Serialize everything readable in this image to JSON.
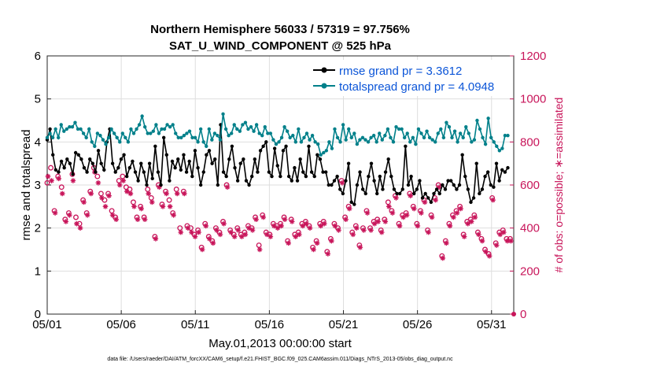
{
  "chart_data": {
    "type": "line",
    "title_line1": "Northern Hemisphere 56033 / 57319 = 97.756%",
    "title_line2": "SAT_U_WIND_COMPONENT @ 525 hPa",
    "xlabel": "May.01,2013 00:00:00 start",
    "ylabel_left": "rmse and totalspread",
    "ylabel_right": "# of obs: o=possible; ∗=assimilated",
    "ylim_left": [
      0,
      6
    ],
    "ylim_right": [
      0,
      1200
    ],
    "xlim": [
      0,
      31.5
    ],
    "x_ticks": [
      0,
      5,
      10,
      15,
      20,
      25,
      30
    ],
    "x_tick_labels": [
      "05/01",
      "05/06",
      "05/11",
      "05/16",
      "05/21",
      "05/26",
      "05/31"
    ],
    "y_ticks_left": [
      "0",
      "1",
      "2",
      "3",
      "4",
      "5",
      "6"
    ],
    "y_ticks_right": [
      "0",
      "200",
      "400",
      "600",
      "800",
      "1000",
      "1200"
    ],
    "grid": true,
    "legend_position": "top-right",
    "footnote": "data file: /Users/raeder/DAI/ATM_forcXX/CAM6_setup/f.e21.FHIST_BGC.f09_025.CAM6assim.011/Diags_NTrS_2013-05/obs_diag_output.nc",
    "colors": {
      "rmse": "#000000",
      "totalspread": "#00808a",
      "obs": "#c8155a",
      "legend_text": "#0b55d8"
    },
    "series": [
      {
        "name": "rmse grand pr = 3.3612",
        "axis": "left",
        "values": [
          4.05,
          4.3,
          3.7,
          3.35,
          3.3,
          3.55,
          3.4,
          3.6,
          3.5,
          3.25,
          3.75,
          3.7,
          3.6,
          3.4,
          3.3,
          3.6,
          3.5,
          3.3,
          3.8,
          3.5,
          3.35,
          4.0,
          4.3,
          3.5,
          3.3,
          3.4,
          3.6,
          3.7,
          3.2,
          3.4,
          3.55,
          3.3,
          3.1,
          3.5,
          3.3,
          3.0,
          3.5,
          3.15,
          3.9,
          3.3,
          3.0,
          4.1,
          3.7,
          3.1,
          3.55,
          3.4,
          3.6,
          3.35,
          3.7,
          3.3,
          3.55,
          3.2,
          3.8,
          3.4,
          3.0,
          3.3,
          3.7,
          3.8,
          3.5,
          3.6,
          3.0,
          4.4,
          3.3,
          3.2,
          3.6,
          3.9,
          3.4,
          3.1,
          3.5,
          3.6,
          3.1,
          3.0,
          3.2,
          3.6,
          3.3,
          3.8,
          3.9,
          4.0,
          3.3,
          3.2,
          3.85,
          3.45,
          3.2,
          3.8,
          3.9,
          3.2,
          3.1,
          3.4,
          3.1,
          3.6,
          3.3,
          3.2,
          3.9,
          3.3,
          3.2,
          3.7,
          3.6,
          3.3,
          3.3,
          3.0,
          3.0,
          3.1,
          3.2,
          2.9,
          2.8,
          3.1,
          3.5,
          2.6,
          2.55,
          3.0,
          3.3,
          2.9,
          2.8,
          3.2,
          3.5,
          3.1,
          2.8,
          3.2,
          2.9,
          3.3,
          3.6,
          3.2,
          2.9,
          2.8,
          2.8,
          2.9,
          3.9,
          3.0,
          3.2,
          2.8,
          2.9,
          3.1,
          2.7,
          2.8,
          2.7,
          2.6,
          2.8,
          2.9,
          2.8,
          3.0,
          2.9,
          3.1,
          3.1,
          3.0,
          2.9,
          3.0,
          3.7,
          3.2,
          2.9,
          2.6,
          2.7,
          3.5,
          2.8,
          2.9,
          3.2,
          3.3,
          3.0,
          2.95,
          3.5,
          3.1,
          3.35,
          3.3,
          3.4
        ]
      },
      {
        "name": "totalspread grand pr = 4.0948",
        "axis": "left",
        "values": [
          4.1,
          4.2,
          4.1,
          4.3,
          4.1,
          4.4,
          4.25,
          4.3,
          4.35,
          4.35,
          4.45,
          4.3,
          4.3,
          4.2,
          4.1,
          4.3,
          4.0,
          3.9,
          4.2,
          4.15,
          4.05,
          3.95,
          4.1,
          4.3,
          4.2,
          4.1,
          4.0,
          4.2,
          4.1,
          4.0,
          4.3,
          4.2,
          4.3,
          4.4,
          4.6,
          4.35,
          4.2,
          4.2,
          4.25,
          4.4,
          4.2,
          4.3,
          4.3,
          4.4,
          4.35,
          4.4,
          4.2,
          4.1,
          4.1,
          4.15,
          4.2,
          4.25,
          4.1,
          4.1,
          4.0,
          4.3,
          4.0,
          3.9,
          4.3,
          4.05,
          4.2,
          4.15,
          4.05,
          4.65,
          4.3,
          4.15,
          4.2,
          4.4,
          4.3,
          4.25,
          4.4,
          4.45,
          4.3,
          4.35,
          4.25,
          4.4,
          4.2,
          4.15,
          4.35,
          4.2,
          4.2,
          4.05,
          3.95,
          4.0,
          4.1,
          4.35,
          4.25,
          4.1,
          4.15,
          4.0,
          4.3,
          4.0,
          4.1,
          4.2,
          4.05,
          4.15,
          4.0,
          3.95,
          3.7,
          3.75,
          3.8,
          4.0,
          3.85,
          4.3,
          4.1,
          4.0,
          4.4,
          4.05,
          4.3,
          4.1,
          4.2,
          3.95,
          4.05,
          4.1,
          4.05,
          4.0,
          4.1,
          4.15,
          4.0,
          4.2,
          4.05,
          4.15,
          4.3,
          4.1,
          4.0,
          4.35,
          4.3,
          4.3,
          4.1,
          4.2,
          4.0,
          4.1,
          3.95,
          4.3,
          4.2,
          4.1,
          4.25,
          4.1,
          4.05,
          4.0,
          4.2,
          4.3,
          4.1,
          4.45,
          4.35,
          4.1,
          4.25,
          4.0,
          4.2,
          4.1,
          4.35,
          4.2,
          4.0,
          4.05,
          4.5,
          4.3,
          4.1,
          3.95,
          4.55,
          4.1,
          4.0,
          3.9,
          3.8,
          3.85,
          4.15,
          4.15
        ]
      },
      {
        "name": "possible obs (o)",
        "axis": "right",
        "values": [
          610,
          680,
          480,
          640,
          590,
          440,
          470,
          650,
          450,
          420,
          530,
          470,
          570,
          680,
          640,
          560,
          530,
          560,
          480,
          450,
          620,
          640,
          590,
          580,
          520,
          450,
          500,
          450,
          580,
          540,
          360,
          600,
          510,
          570,
          530,
          470,
          580,
          400,
          570,
          410,
          400,
          370,
          390,
          310,
          420,
          360,
          340,
          400,
          380,
          430,
          600,
          390,
          370,
          400,
          370,
          380,
          410,
          400,
          450,
          320,
          460,
          380,
          370,
          420,
          410,
          420,
          450,
          340,
          440,
          370,
          380,
          420,
          430,
          410,
          310,
          340,
          420,
          430,
          290,
          350,
          420,
          400,
          620,
          450,
          500,
          380,
          410,
          320,
          400,
          480,
          400,
          430,
          440,
          390,
          440,
          520,
          480,
          550,
          420,
          460,
          470,
          560,
          500,
          420,
          480,
          530,
          390,
          460,
          540,
          600,
          270,
          340,
          420,
          460,
          480,
          500,
          370,
          430,
          440,
          460,
          380,
          350,
          300,
          280,
          540,
          330,
          380,
          390,
          350,
          350
        ]
      },
      {
        "name": "assimilated obs (∗)",
        "axis": "right",
        "values": [
          640,
          620,
          470,
          630,
          560,
          430,
          460,
          620,
          420,
          400,
          520,
          460,
          560,
          660,
          610,
          540,
          500,
          550,
          460,
          440,
          600,
          620,
          570,
          560,
          500,
          440,
          490,
          440,
          560,
          520,
          350,
          590,
          500,
          560,
          500,
          460,
          560,
          380,
          560,
          400,
          380,
          360,
          380,
          300,
          410,
          350,
          330,
          390,
          370,
          420,
          590,
          380,
          360,
          390,
          360,
          370,
          400,
          390,
          440,
          300,
          450,
          370,
          360,
          410,
          400,
          410,
          440,
          330,
          430,
          360,
          370,
          410,
          420,
          400,
          300,
          330,
          410,
          420,
          280,
          340,
          410,
          390,
          610,
          440,
          490,
          370,
          400,
          310,
          390,
          470,
          390,
          420,
          430,
          380,
          430,
          500,
          470,
          540,
          410,
          450,
          460,
          550,
          490,
          410,
          470,
          520,
          380,
          450,
          530,
          590,
          260,
          330,
          410,
          450,
          470,
          490,
          360,
          420,
          430,
          450,
          370,
          340,
          290,
          270,
          530,
          320,
          370,
          380,
          340,
          340
        ]
      }
    ]
  }
}
